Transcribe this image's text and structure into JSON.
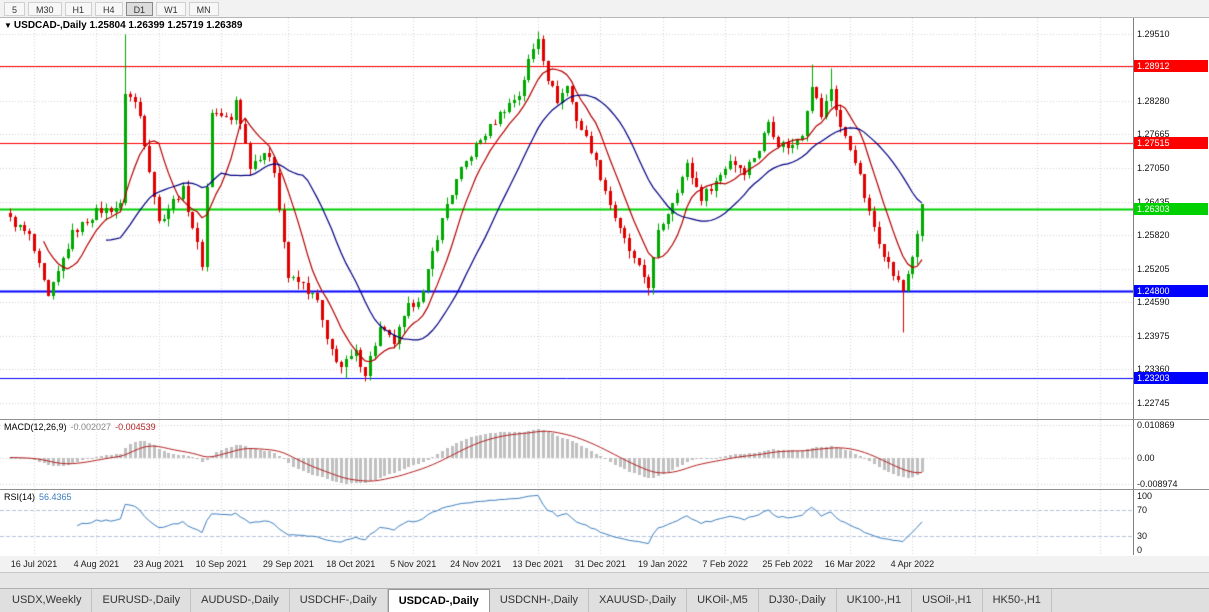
{
  "colors": {
    "up": "#00A800",
    "down": "#E00000",
    "ma_fast": "#B40000",
    "ma_slow": "#000080",
    "grid": "#D6D6D6",
    "macd_hist": "#C0C0C0",
    "macd_signal": "#B22222",
    "rsi_line": "#4080C0",
    "rsi_level": "#B8C4DC"
  },
  "toolbar": {
    "timeframes": [
      "5",
      "M30",
      "H1",
      "H4",
      "D1",
      "W1",
      "MN"
    ],
    "active": "D1"
  },
  "chart": {
    "collapse_icon": "▼",
    "symbol": "USDCAD-,Daily",
    "ohlc": "1.25804 1.26399 1.25719 1.26389"
  },
  "price_axis": {
    "labels": [
      "1.29510",
      "1.28280",
      "1.27665",
      "1.27050",
      "1.26435",
      "1.25820",
      "1.25205",
      "1.24590",
      "1.23975",
      "1.23360",
      "1.22745"
    ],
    "ylim": [
      1.2245,
      1.298
    ]
  },
  "levels": [
    {
      "price": 1.28912,
      "label": "1.28912",
      "color": "#FF0000",
      "width": 1
    },
    {
      "price": 1.27515,
      "label": "1.27515",
      "color": "#FF0000",
      "width": 1
    },
    {
      "price": 1.26303,
      "label": "1.26303",
      "color": "#00D000",
      "width": 2
    },
    {
      "price": 1.248,
      "label": "1.24800",
      "color": "#0000FF",
      "width": 2
    },
    {
      "price": 1.23203,
      "label": "1.23203",
      "color": "#0000FF",
      "width": 1
    }
  ],
  "macd": {
    "label": "MACD(12,26,9)",
    "value_main": "-0.002027",
    "value_signal": "-0.004539",
    "axis_labels": [
      "0.010869",
      "0.00",
      "-0.008974"
    ],
    "ylim": [
      -0.0105,
      0.0125
    ]
  },
  "rsi": {
    "label": "RSI(14)",
    "value": "56.4365",
    "axis_labels": [
      "100",
      "70",
      "30",
      "0"
    ],
    "levels": [
      70,
      30
    ],
    "ylim": [
      0,
      100
    ]
  },
  "date_axis": [
    {
      "i": 5,
      "label": "16 Jul 2021"
    },
    {
      "i": 18,
      "label": "4 Aug 2021"
    },
    {
      "i": 31,
      "label": "23 Aug 2021"
    },
    {
      "i": 44,
      "label": "10 Sep 2021"
    },
    {
      "i": 58,
      "label": "29 Sep 2021"
    },
    {
      "i": 71,
      "label": "18 Oct 2021"
    },
    {
      "i": 84,
      "label": "5 Nov 2021"
    },
    {
      "i": 97,
      "label": "24 Nov 2021"
    },
    {
      "i": 110,
      "label": "13 Dec 2021"
    },
    {
      "i": 123,
      "label": "31 Dec 2021"
    },
    {
      "i": 136,
      "label": "19 Jan 2022"
    },
    {
      "i": 149,
      "label": "7 Feb 2022"
    },
    {
      "i": 162,
      "label": "25 Feb 2022"
    },
    {
      "i": 175,
      "label": "16 Mar 2022"
    },
    {
      "i": 188,
      "label": "4 Apr 2022"
    }
  ],
  "tabs": {
    "items": [
      "USDX,Weekly",
      "EURUSD-,Daily",
      "AUDUSD-,Daily",
      "USDCHF-,Daily",
      "USDCAD-,Daily",
      "USDCNH-,Daily",
      "XAUUSD-,Daily",
      "UKOil-,M5",
      "DJ30-,Daily",
      "UK100-,H1",
      "USOil-,H1",
      "HK50-,H1"
    ],
    "active": "USDCAD-,Daily"
  },
  "chart_data": {
    "type": "candlestick",
    "symbol": "USDCAD",
    "timeframe": "Daily",
    "candle_count": 191,
    "last_candle": {
      "open": 1.25804,
      "high": 1.26399,
      "low": 1.25719,
      "close": 1.26389
    },
    "close_waypoints": [
      [
        0,
        1.261
      ],
      [
        4,
        1.258
      ],
      [
        8,
        1.2465
      ],
      [
        13,
        1.2585
      ],
      [
        18,
        1.2625
      ],
      [
        23,
        1.2635
      ],
      [
        24,
        1.2845
      ],
      [
        26,
        1.2825
      ],
      [
        27,
        1.28
      ],
      [
        29,
        1.2705
      ],
      [
        31,
        1.2605
      ],
      [
        34,
        1.2645
      ],
      [
        36,
        1.2665
      ],
      [
        40,
        1.253
      ],
      [
        42,
        1.281
      ],
      [
        46,
        1.279
      ],
      [
        47,
        1.283
      ],
      [
        50,
        1.271
      ],
      [
        53,
        1.2735
      ],
      [
        55,
        1.27
      ],
      [
        58,
        1.2505
      ],
      [
        61,
        1.249
      ],
      [
        64,
        1.246
      ],
      [
        66,
        1.2385
      ],
      [
        69,
        1.234
      ],
      [
        72,
        1.2365
      ],
      [
        74,
        1.233
      ],
      [
        77,
        1.241
      ],
      [
        80,
        1.2385
      ],
      [
        83,
        1.245
      ],
      [
        86,
        1.2475
      ],
      [
        88,
        1.255
      ],
      [
        91,
        1.264
      ],
      [
        94,
        1.27
      ],
      [
        97,
        1.2745
      ],
      [
        100,
        1.278
      ],
      [
        103,
        1.2815
      ],
      [
        106,
        1.284
      ],
      [
        108,
        1.29
      ],
      [
        110,
        1.2945
      ],
      [
        112,
        1.287
      ],
      [
        114,
        1.283
      ],
      [
        116,
        1.2855
      ],
      [
        118,
        1.2795
      ],
      [
        121,
        1.274
      ],
      [
        124,
        1.2665
      ],
      [
        127,
        1.259
      ],
      [
        130,
        1.2535
      ],
      [
        133,
        1.249
      ],
      [
        135,
        1.2585
      ],
      [
        138,
        1.2645
      ],
      [
        141,
        1.271
      ],
      [
        144,
        1.265
      ],
      [
        147,
        1.268
      ],
      [
        150,
        1.272
      ],
      [
        153,
        1.27
      ],
      [
        156,
        1.274
      ],
      [
        158,
        1.279
      ],
      [
        160,
        1.275
      ],
      [
        163,
        1.2745
      ],
      [
        165,
        1.277
      ],
      [
        167,
        1.286
      ],
      [
        169,
        1.28
      ],
      [
        171,
        1.285
      ],
      [
        173,
        1.278
      ],
      [
        176,
        1.272
      ],
      [
        179,
        1.262
      ],
      [
        182,
        1.255
      ],
      [
        184,
        1.251
      ],
      [
        186,
        1.248
      ],
      [
        188,
        1.2545
      ],
      [
        189,
        1.2578
      ],
      [
        190,
        1.26389
      ]
    ],
    "wick_overrides": [
      {
        "i": 24,
        "h": 1.295
      },
      {
        "i": 110,
        "h": 1.2957
      },
      {
        "i": 167,
        "h": 1.2895
      },
      {
        "i": 171,
        "h": 1.2888
      },
      {
        "i": 69,
        "l": 1.233
      },
      {
        "i": 70,
        "l": 1.232
      },
      {
        "i": 74,
        "l": 1.2316
      },
      {
        "i": 186,
        "l": 1.2405
      }
    ],
    "noise_amp": 0.0016,
    "wick_amp": 0.0013,
    "ma_fast_period": 8,
    "ma_slow_period": 21,
    "macd_params": [
      12,
      26,
      9
    ],
    "rsi_period": 14
  }
}
